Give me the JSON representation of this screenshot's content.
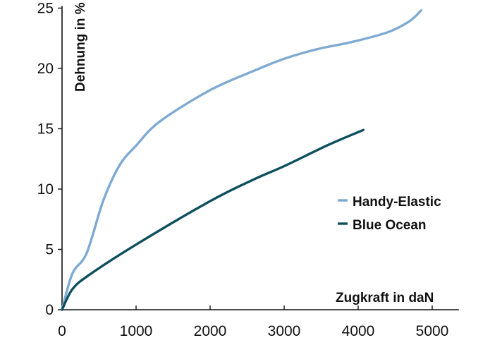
{
  "chart_data": {
    "type": "line",
    "title": "",
    "xlabel": "Zugkraft in daN",
    "ylabel": "Dehnung in %",
    "xlim": [
      0,
      5360
    ],
    "ylim": [
      0,
      25
    ],
    "xticks": [
      "0",
      "1000",
      "2000",
      "3000",
      "4000",
      "5000"
    ],
    "yticks": [
      "0",
      "5",
      "10",
      "15",
      "20",
      "25"
    ],
    "grid": false,
    "legend_position": "right-middle",
    "series": [
      {
        "name": "Handy-Elastic",
        "color": "#7eaad2",
        "x": [
          0,
          140,
          333,
          560,
          780,
          1000,
          1320,
          2000,
          2590,
          3000,
          3450,
          3920,
          4400,
          4690,
          4850
        ],
        "y": [
          0,
          3.0,
          4.7,
          9.1,
          12.0,
          13.6,
          15.6,
          18.2,
          19.8,
          20.8,
          21.6,
          22.2,
          23.0,
          23.9,
          24.8
        ]
      },
      {
        "name": "Blue Ocean",
        "color": "#0e4f5e",
        "x": [
          0,
          140,
          370,
          1000,
          2000,
          2590,
          3000,
          3610,
          4070
        ],
        "y": [
          0,
          1.7,
          2.9,
          5.4,
          9.0,
          10.8,
          11.9,
          13.7,
          14.9
        ]
      }
    ]
  }
}
